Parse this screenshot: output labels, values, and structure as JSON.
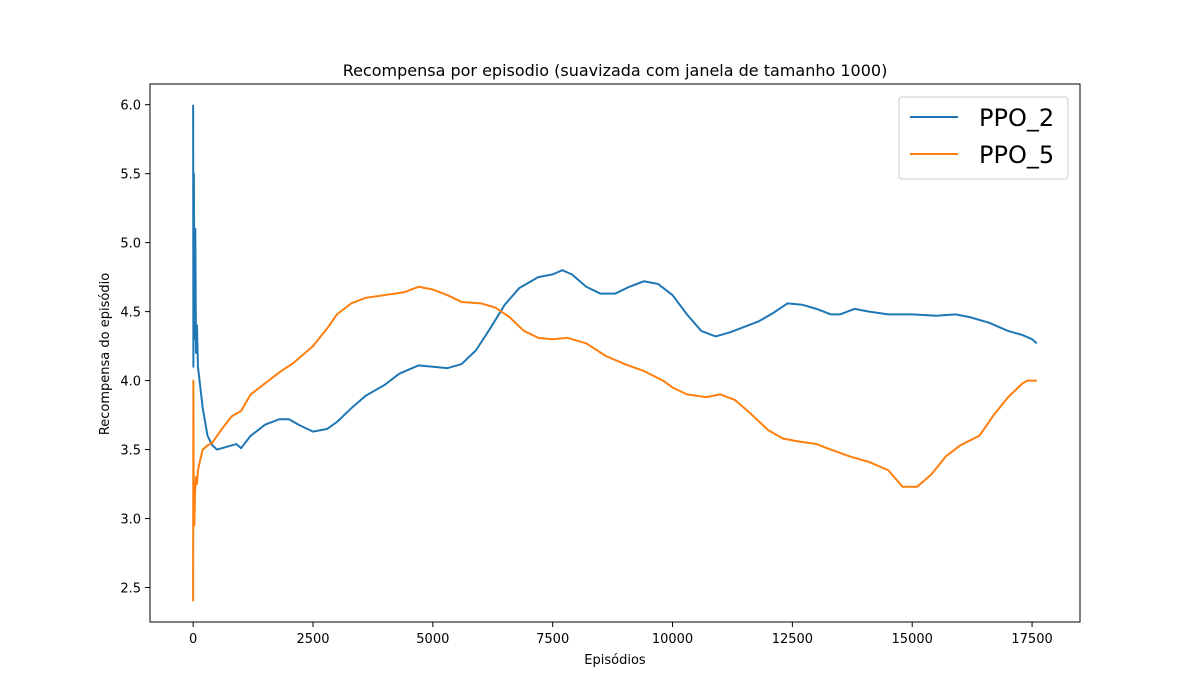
{
  "chart_data": {
    "type": "line",
    "title": "Recompensa por episodio (suavizada com janela de tamanho 1000)",
    "xlabel": "Episódios",
    "ylabel": "Recompensa do episódio",
    "xlim": [
      -900,
      18500
    ],
    "ylim": [
      2.25,
      6.15
    ],
    "xticks": [
      0,
      2500,
      5000,
      7500,
      10000,
      12500,
      15000,
      17500
    ],
    "xtick_labels": [
      "0",
      "2500",
      "5000",
      "7500",
      "10000",
      "12500",
      "15000",
      "17500"
    ],
    "yticks": [
      2.5,
      3.0,
      3.5,
      4.0,
      4.5,
      5.0,
      5.5,
      6.0
    ],
    "ytick_labels": [
      "2.5",
      "3.0",
      "3.5",
      "4.0",
      "4.5",
      "5.0",
      "5.5",
      "6.0"
    ],
    "grid": false,
    "legend_position": "top-right",
    "series": [
      {
        "name": "PPO_2",
        "color": "#1f77b4",
        "points": [
          [
            0,
            6.0
          ],
          [
            5,
            4.1
          ],
          [
            15,
            5.5
          ],
          [
            30,
            4.3
          ],
          [
            45,
            5.1
          ],
          [
            60,
            4.2
          ],
          [
            80,
            4.4
          ],
          [
            100,
            4.1
          ],
          [
            150,
            3.95
          ],
          [
            200,
            3.8
          ],
          [
            300,
            3.6
          ],
          [
            400,
            3.53
          ],
          [
            500,
            3.5
          ],
          [
            700,
            3.52
          ],
          [
            900,
            3.54
          ],
          [
            1000,
            3.51
          ],
          [
            1200,
            3.6
          ],
          [
            1500,
            3.68
          ],
          [
            1800,
            3.72
          ],
          [
            2000,
            3.72
          ],
          [
            2200,
            3.68
          ],
          [
            2500,
            3.63
          ],
          [
            2800,
            3.65
          ],
          [
            3000,
            3.7
          ],
          [
            3300,
            3.8
          ],
          [
            3600,
            3.89
          ],
          [
            4000,
            3.97
          ],
          [
            4300,
            4.05
          ],
          [
            4700,
            4.11
          ],
          [
            5000,
            4.1
          ],
          [
            5300,
            4.09
          ],
          [
            5600,
            4.12
          ],
          [
            5900,
            4.22
          ],
          [
            6200,
            4.38
          ],
          [
            6500,
            4.55
          ],
          [
            6800,
            4.67
          ],
          [
            7200,
            4.75
          ],
          [
            7500,
            4.77
          ],
          [
            7700,
            4.8
          ],
          [
            7900,
            4.77
          ],
          [
            8200,
            4.68
          ],
          [
            8500,
            4.63
          ],
          [
            8800,
            4.63
          ],
          [
            9100,
            4.68
          ],
          [
            9400,
            4.72
          ],
          [
            9700,
            4.7
          ],
          [
            10000,
            4.62
          ],
          [
            10300,
            4.48
          ],
          [
            10600,
            4.36
          ],
          [
            10900,
            4.32
          ],
          [
            11200,
            4.35
          ],
          [
            11500,
            4.39
          ],
          [
            11800,
            4.43
          ],
          [
            12100,
            4.49
          ],
          [
            12400,
            4.56
          ],
          [
            12700,
            4.55
          ],
          [
            13000,
            4.52
          ],
          [
            13300,
            4.48
          ],
          [
            13500,
            4.48
          ],
          [
            13800,
            4.52
          ],
          [
            14100,
            4.5
          ],
          [
            14500,
            4.48
          ],
          [
            15000,
            4.48
          ],
          [
            15500,
            4.47
          ],
          [
            15900,
            4.48
          ],
          [
            16200,
            4.46
          ],
          [
            16600,
            4.42
          ],
          [
            17000,
            4.36
          ],
          [
            17300,
            4.33
          ],
          [
            17500,
            4.3
          ],
          [
            17600,
            4.27
          ]
        ]
      },
      {
        "name": "PPO_5",
        "color": "#ff7f0e",
        "points": [
          [
            0,
            2.4
          ],
          [
            5,
            4.0
          ],
          [
            12,
            3.1
          ],
          [
            25,
            2.95
          ],
          [
            40,
            3.2
          ],
          [
            60,
            3.3
          ],
          [
            80,
            3.25
          ],
          [
            100,
            3.35
          ],
          [
            150,
            3.43
          ],
          [
            200,
            3.5
          ],
          [
            300,
            3.53
          ],
          [
            400,
            3.55
          ],
          [
            500,
            3.6
          ],
          [
            600,
            3.65
          ],
          [
            800,
            3.74
          ],
          [
            1000,
            3.78
          ],
          [
            1200,
            3.9
          ],
          [
            1500,
            3.98
          ],
          [
            1800,
            4.06
          ],
          [
            2100,
            4.13
          ],
          [
            2500,
            4.25
          ],
          [
            2800,
            4.38
          ],
          [
            3000,
            4.48
          ],
          [
            3300,
            4.56
          ],
          [
            3600,
            4.6
          ],
          [
            4000,
            4.62
          ],
          [
            4400,
            4.64
          ],
          [
            4700,
            4.68
          ],
          [
            5000,
            4.66
          ],
          [
            5300,
            4.62
          ],
          [
            5600,
            4.57
          ],
          [
            6000,
            4.56
          ],
          [
            6300,
            4.53
          ],
          [
            6600,
            4.46
          ],
          [
            6900,
            4.36
          ],
          [
            7200,
            4.31
          ],
          [
            7500,
            4.3
          ],
          [
            7800,
            4.31
          ],
          [
            8200,
            4.27
          ],
          [
            8600,
            4.18
          ],
          [
            9000,
            4.12
          ],
          [
            9400,
            4.07
          ],
          [
            9800,
            4.0
          ],
          [
            10000,
            3.95
          ],
          [
            10300,
            3.9
          ],
          [
            10700,
            3.88
          ],
          [
            11000,
            3.9
          ],
          [
            11300,
            3.86
          ],
          [
            11600,
            3.77
          ],
          [
            12000,
            3.64
          ],
          [
            12300,
            3.58
          ],
          [
            12600,
            3.56
          ],
          [
            13000,
            3.54
          ],
          [
            13300,
            3.5
          ],
          [
            13700,
            3.45
          ],
          [
            14100,
            3.41
          ],
          [
            14500,
            3.35
          ],
          [
            14800,
            3.23
          ],
          [
            15100,
            3.23
          ],
          [
            15400,
            3.32
          ],
          [
            15700,
            3.45
          ],
          [
            16000,
            3.53
          ],
          [
            16400,
            3.6
          ],
          [
            16700,
            3.75
          ],
          [
            17000,
            3.88
          ],
          [
            17300,
            3.98
          ],
          [
            17400,
            4.0
          ],
          [
            17600,
            4.0
          ]
        ]
      }
    ]
  }
}
